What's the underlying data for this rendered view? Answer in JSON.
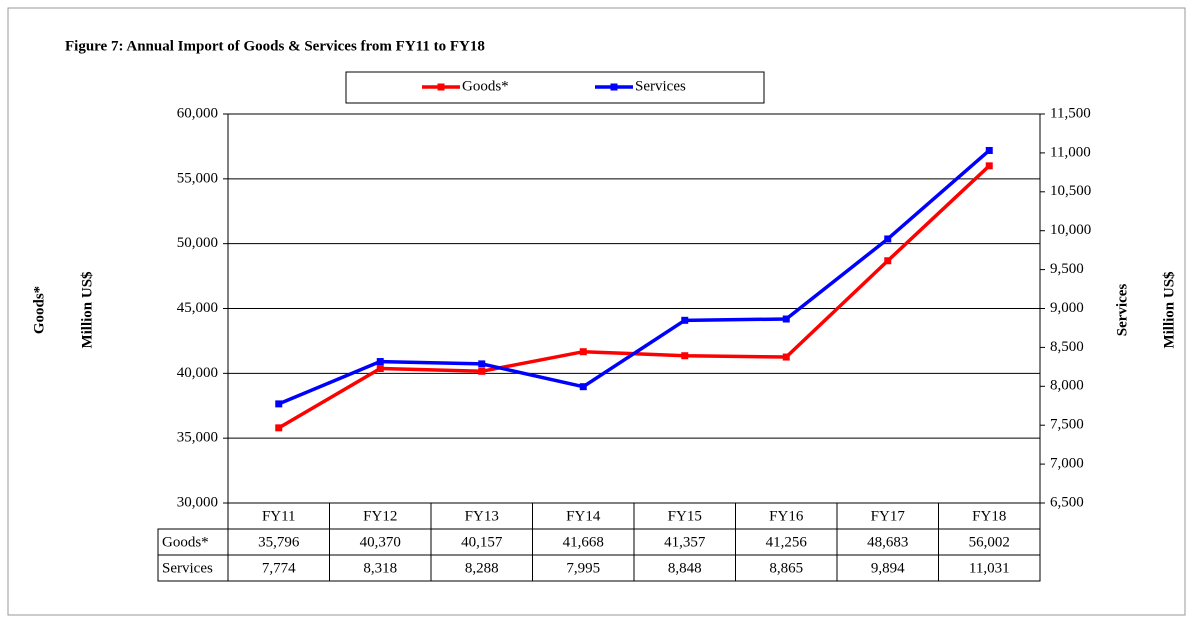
{
  "chart_data": {
    "type": "line",
    "title": "Figure 7: Annual Import of Goods & Services from  FY11  to FY18",
    "ylabel": "Goods*",
    "yunit": "Million US$",
    "y2label": "Services",
    "y2unit": "Million US$",
    "categories": [
      "FY11",
      "FY12",
      "FY13",
      "FY14",
      "FY15",
      "FY16",
      "FY17",
      "FY18"
    ],
    "series": [
      {
        "name": "Goods*",
        "color": "#ff0000",
        "axis": "y",
        "values": [
          35796,
          40370,
          40157,
          41668,
          41357,
          41256,
          48683,
          56002
        ],
        "value_labels": [
          "35,796",
          "40,370",
          "40,157",
          "41,668",
          "41,357",
          "41,256",
          "48,683",
          "56,002"
        ]
      },
      {
        "name": "Services",
        "color": "#0000ff",
        "axis": "y2",
        "values": [
          7774,
          8318,
          8288,
          7995,
          8848,
          8865,
          9894,
          11031
        ],
        "value_labels": [
          "7,774",
          "8,318",
          "8,288",
          "7,995",
          "8,848",
          "8,865",
          "9,894",
          "11,031"
        ]
      }
    ],
    "ylim": [
      30000,
      60000
    ],
    "yticks": [
      {
        "value": 30000,
        "label": "30,000"
      },
      {
        "value": 35000,
        "label": "35,000"
      },
      {
        "value": 40000,
        "label": "40,000"
      },
      {
        "value": 45000,
        "label": "45,000"
      },
      {
        "value": 50000,
        "label": "50,000"
      },
      {
        "value": 55000,
        "label": "55,000"
      },
      {
        "value": 60000,
        "label": "60,000"
      }
    ],
    "y2lim": [
      6500,
      11500
    ],
    "y2ticks": [
      {
        "value": 6500,
        "label": "6,500"
      },
      {
        "value": 7000,
        "label": "7,000"
      },
      {
        "value": 7500,
        "label": "7,500"
      },
      {
        "value": 8000,
        "label": "8,000"
      },
      {
        "value": 8500,
        "label": "8,500"
      },
      {
        "value": 9000,
        "label": "9,000"
      },
      {
        "value": 9500,
        "label": "9,500"
      },
      {
        "value": 10000,
        "label": "10,000"
      },
      {
        "value": 10500,
        "label": "10,500"
      },
      {
        "value": 11000,
        "label": "11,000"
      },
      {
        "value": 11500,
        "label": "11,500"
      }
    ],
    "grid": true,
    "legend": "top"
  }
}
